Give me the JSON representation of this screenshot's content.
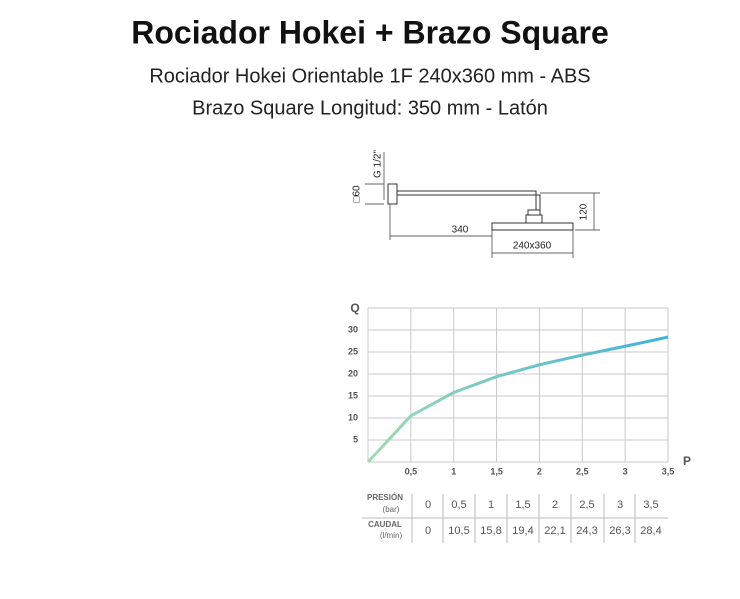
{
  "header": {
    "title": "Rociador Hokei + Brazo Square",
    "lines": [
      "Rociador Hokei Orientable 1F 240x360 mm - ABS",
      "Brazo Square Longitud: 350 mm - Latón"
    ]
  },
  "diagram": {
    "labels": {
      "thread": "G 1/2\"",
      "plate": "□60",
      "arm": "340",
      "drop": "120",
      "head": "240x360"
    }
  },
  "chart_data": {
    "type": "line",
    "y_label": "Q",
    "x_label": "P",
    "x": [
      0,
      0.5,
      1,
      1.5,
      2,
      2.5,
      3,
      3.5
    ],
    "series": [
      {
        "values": [
          0,
          10.5,
          15.8,
          19.4,
          22.1,
          24.3,
          26.3,
          28.4
        ],
        "color": "#5bbdd4",
        "gradient": [
          "#a2d9b0",
          "#3fb1dc"
        ]
      }
    ],
    "xlim": [
      0,
      3.5
    ],
    "ylim": [
      0,
      35
    ],
    "xticks": [
      {
        "value": 0.5,
        "label": "0,5"
      },
      1,
      {
        "value": 1.5,
        "label": "1,5"
      },
      2,
      {
        "value": 2.5,
        "label": "2,5"
      },
      3,
      {
        "value": 3.5,
        "label": "3,5"
      }
    ],
    "yticks": [
      5,
      10,
      15,
      20,
      25,
      30
    ],
    "grid": true
  },
  "table": {
    "rows": [
      {
        "label": "PRESIÓN",
        "unit": "(bar)",
        "cells": [
          "0",
          "0,5",
          "1",
          "1,5",
          "2",
          "2,5",
          "3",
          "3,5"
        ]
      },
      {
        "label": "CAUDAL",
        "unit": "(l/min)",
        "cells": [
          "0",
          "10,5",
          "15,8",
          "19,4",
          "22,1",
          "24,3",
          "26,3",
          "28,4"
        ]
      }
    ]
  }
}
